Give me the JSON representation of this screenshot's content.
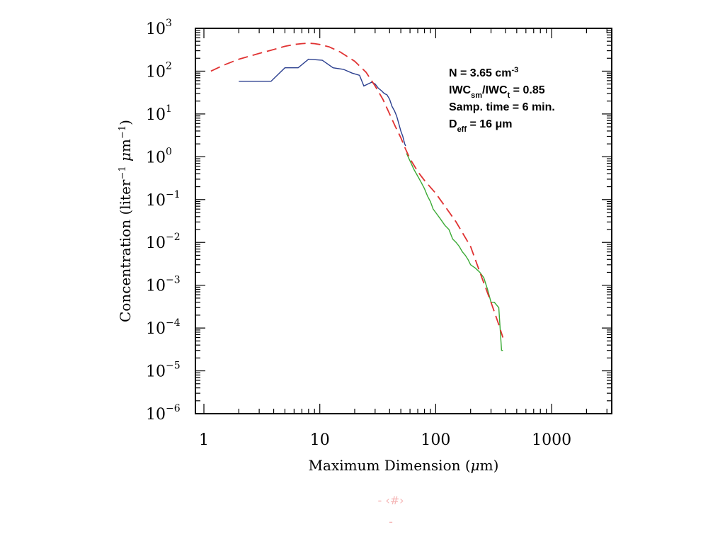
{
  "chart_data": {
    "type": "line",
    "xscale": "log",
    "yscale": "log",
    "xlim": [
      1,
      3300
    ],
    "ylim": [
      1e-06,
      1000
    ],
    "x_ticks": [
      {
        "value": 1,
        "label": "1"
      },
      {
        "value": 10,
        "label": "10"
      },
      {
        "value": 100,
        "label": "100"
      },
      {
        "value": 1000,
        "label": "1000"
      }
    ],
    "y_ticks": [
      {
        "value": 1000,
        "base": "10",
        "exp": "3"
      },
      {
        "value": 100,
        "base": "10",
        "exp": "2"
      },
      {
        "value": 10,
        "base": "10",
        "exp": "1"
      },
      {
        "value": 1,
        "base": "10",
        "exp": "0"
      },
      {
        "value": 0.1,
        "base": "10",
        "exp": "−1"
      },
      {
        "value": 0.01,
        "base": "10",
        "exp": "−2"
      },
      {
        "value": 0.001,
        "base": "10",
        "exp": "−3"
      },
      {
        "value": 0.0001,
        "base": "10",
        "exp": "−4"
      },
      {
        "value": 1e-05,
        "base": "10",
        "exp": "−5"
      },
      {
        "value": 1e-06,
        "base": "10",
        "exp": "−6"
      }
    ],
    "xlabel": {
      "text": "Maximum Dimension (",
      "greek": "μ",
      "unit": "m)"
    },
    "ylabel": {
      "text": "Concentration (liter",
      "exp1": "−1",
      "mid": " ",
      "greek": "μ",
      "unit": "m",
      "exp2": "−1",
      "close": ")"
    },
    "grid": false,
    "series": [
      {
        "color": "#2b3f8f",
        "style": "solid",
        "x": [
          2.0,
          3.8,
          5.0,
          6.5,
          8.0,
          10.5,
          13,
          16,
          19,
          22,
          24,
          26,
          28,
          30,
          32,
          34,
          36,
          38,
          40,
          42,
          44,
          46,
          48,
          50,
          52,
          54,
          55
        ],
        "y": [
          58,
          58,
          120,
          120,
          190,
          180,
          120,
          110,
          90,
          80,
          45,
          50,
          55,
          50,
          40,
          35,
          30,
          28,
          22,
          15,
          12,
          9,
          6,
          4,
          3,
          2,
          1.8
        ]
      },
      {
        "color": "#3aaa35",
        "style": "solid",
        "x": [
          56,
          60,
          65,
          70,
          75,
          80,
          85,
          90,
          95,
          100,
          110,
          120,
          130,
          140,
          150,
          160,
          170,
          180,
          190,
          200,
          220,
          240,
          260,
          280,
          300,
          320,
          350,
          370,
          380
        ],
        "y": [
          1.2,
          0.8,
          0.5,
          0.35,
          0.25,
          0.18,
          0.12,
          0.09,
          0.06,
          0.05,
          0.035,
          0.025,
          0.02,
          0.012,
          0.01,
          0.008,
          0.006,
          0.005,
          0.004,
          0.003,
          0.0025,
          0.002,
          0.0015,
          0.0008,
          0.0004,
          0.0004,
          0.0003,
          3e-05,
          3e-05
        ]
      },
      {
        "color": "#e03232",
        "style": "dashed",
        "x": [
          1.15,
          1.5,
          2,
          3,
          4,
          5,
          6,
          7,
          8,
          9,
          10,
          12,
          15,
          20,
          25,
          30,
          35,
          40,
          45,
          50,
          55,
          60,
          70,
          80,
          100,
          120,
          150,
          200,
          250,
          300,
          350,
          380
        ],
        "y": [
          100,
          140,
          190,
          260,
          320,
          380,
          420,
          440,
          450,
          440,
          420,
          370,
          280,
          170,
          95,
          45,
          22,
          10,
          5,
          2.8,
          1.5,
          0.9,
          0.45,
          0.28,
          0.14,
          0.07,
          0.03,
          0.008,
          0.0015,
          0.0004,
          0.00012,
          6e-05
        ]
      }
    ],
    "annotations": [
      {
        "parts": [
          [
            "N = 3.65 cm",
            ""
          ],
          [
            "-3",
            "sup"
          ]
        ]
      },
      {
        "parts": [
          [
            "IWC",
            ""
          ],
          [
            "sm",
            "sub"
          ],
          [
            "/IWC",
            ""
          ],
          [
            "t",
            "sub"
          ],
          [
            " = 0.85",
            ""
          ]
        ]
      },
      {
        "parts": [
          [
            "Samp. time = 6 min.",
            ""
          ]
        ]
      },
      {
        "parts": [
          [
            "D",
            ""
          ],
          [
            "eff",
            "sub"
          ],
          [
            " = 16 μm",
            ""
          ]
        ]
      }
    ]
  },
  "footer": {
    "line1": "- ‹#›",
    "line2": "-"
  }
}
